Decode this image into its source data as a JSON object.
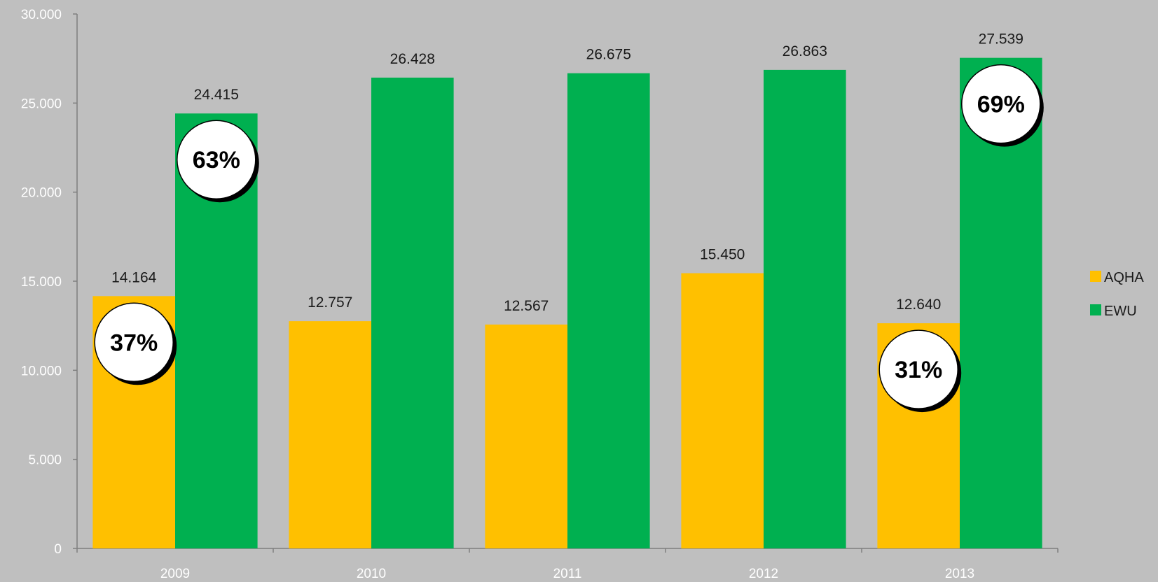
{
  "chart_data": {
    "type": "bar",
    "categories": [
      "2009",
      "2010",
      "2011",
      "2012",
      "2013"
    ],
    "series": [
      {
        "name": "AQHA",
        "color": "#ffc000",
        "values": [
          14164,
          12757,
          12567,
          15450,
          12640
        ],
        "labels": [
          "14.164",
          "12.757",
          "12.567",
          "15.450",
          "12.640"
        ]
      },
      {
        "name": "EWU",
        "color": "#00b050",
        "values": [
          24415,
          26428,
          26675,
          26863,
          27539
        ],
        "labels": [
          "24.415",
          "26.428",
          "26.675",
          "26.863",
          "27.539"
        ]
      }
    ],
    "ylim": [
      0,
      30000
    ],
    "yticks": [
      {
        "value": 0,
        "label": "0"
      },
      {
        "value": 5000,
        "label": "5.000"
      },
      {
        "value": 10000,
        "label": "10.000"
      },
      {
        "value": 15000,
        "label": "15.000"
      },
      {
        "value": 20000,
        "label": "20.000"
      },
      {
        "value": 25000,
        "label": "25.000"
      },
      {
        "value": 30000,
        "label": "30.000"
      }
    ],
    "grid": false,
    "legend_position": "right",
    "share_badges": [
      {
        "category": "2009",
        "series": "AQHA",
        "label": "37%"
      },
      {
        "category": "2009",
        "series": "EWU",
        "label": "63%"
      },
      {
        "category": "2013",
        "series": "AQHA",
        "label": "31%"
      },
      {
        "category": "2013",
        "series": "EWU",
        "label": "69%"
      }
    ]
  }
}
